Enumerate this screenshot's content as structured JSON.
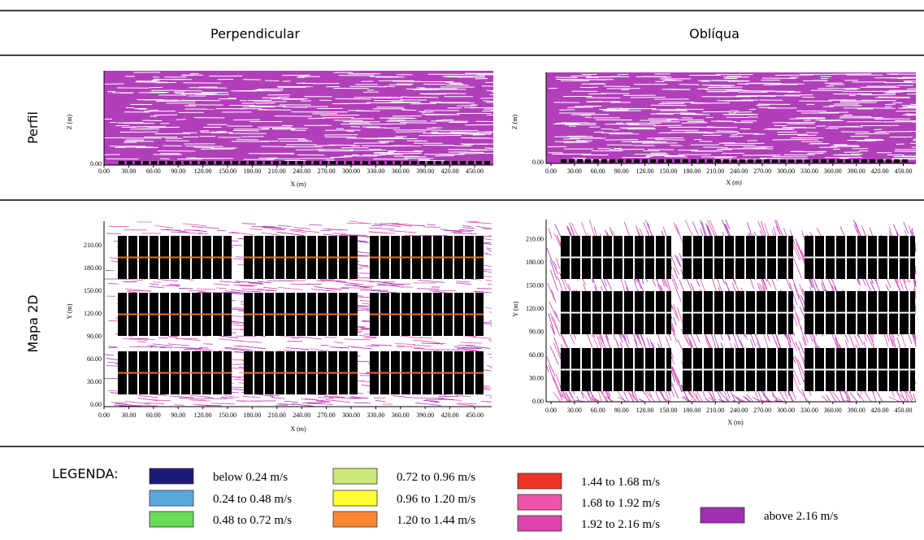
{
  "columns": [
    "Perpendicular",
    "Oblíqua"
  ],
  "rows": [
    "Perfil",
    "Mapa 2D"
  ],
  "panels": [
    {
      "xlabel": "X (m)",
      "ylabel": "Z (m)",
      "xticks": [
        "0.00",
        "30.00",
        "60.00",
        "90.00",
        "120.00",
        "150.00",
        "180.00",
        "210.00",
        "240.00",
        "270.00",
        "300.00",
        "330.00",
        "360.00",
        "390.00",
        "420.00",
        "450.00"
      ],
      "yticks": [
        "0.00"
      ]
    },
    {
      "xlabel": "X (m)",
      "ylabel": "Z (m)",
      "xticks": [
        "0.00",
        "30.00",
        "60.00",
        "90.00",
        "120.00",
        "150.00",
        "180.00",
        "210.00",
        "240.00",
        "270.00",
        "300.00",
        "330.00",
        "360.00",
        "390.00",
        "420.00",
        "450.00"
      ],
      "yticks": [
        "0.00"
      ]
    },
    {
      "xlabel": "X (m)",
      "ylabel": "Y (m)",
      "xticks": [
        "0.00",
        "30.00",
        "60.00",
        "90.00",
        "120.00",
        "150.00",
        "180.00",
        "210.00",
        "240.00",
        "270.00",
        "300.00",
        "330.00",
        "360.00",
        "390.00",
        "420.00",
        "450.00"
      ],
      "yticks": [
        "0.00",
        "30.00",
        "60.00",
        "90.00",
        "120.00",
        "150.00",
        "180.00",
        "210.00"
      ]
    },
    {
      "xlabel": "X (m)",
      "ylabel": "Y (m)",
      "xticks": [
        "0.00",
        "30.00",
        "60.00",
        "90.00",
        "120.00",
        "150.00",
        "180.00",
        "210.00",
        "240.00",
        "270.00",
        "300.00",
        "330.00",
        "360.00",
        "390.00",
        "420.00",
        "450.00"
      ],
      "yticks": [
        "0.00",
        "30.00",
        "60.00",
        "90.00",
        "120.00",
        "150.00",
        "180.00",
        "210.00"
      ]
    }
  ],
  "legend": {
    "title": "LEGENDA:",
    "items": [
      {
        "label": "below 0.24 m/s",
        "color": "#1c1a78"
      },
      {
        "label": "0.24 to 0.48 m/s",
        "color": "#5aa8e0"
      },
      {
        "label": "0.48 to 0.72 m/s",
        "color": "#66dd55"
      },
      {
        "label": "0.72 to 0.96 m/s",
        "color": "#cde77a"
      },
      {
        "label": "0.96 to 1.20 m/s",
        "color": "#ffff33"
      },
      {
        "label": "1.20 to 1.44 m/s",
        "color": "#ff8833"
      },
      {
        "label": "1.44 to 1.68 m/s",
        "color": "#ee3322"
      },
      {
        "label": "1.68 to 1.92 m/s",
        "color": "#ee55aa"
      },
      {
        "label": "1.92 to 2.16 m/s",
        "color": "#dd44aa"
      },
      {
        "label": "above 2.16 m/s",
        "color": "#a030b0"
      }
    ]
  }
}
